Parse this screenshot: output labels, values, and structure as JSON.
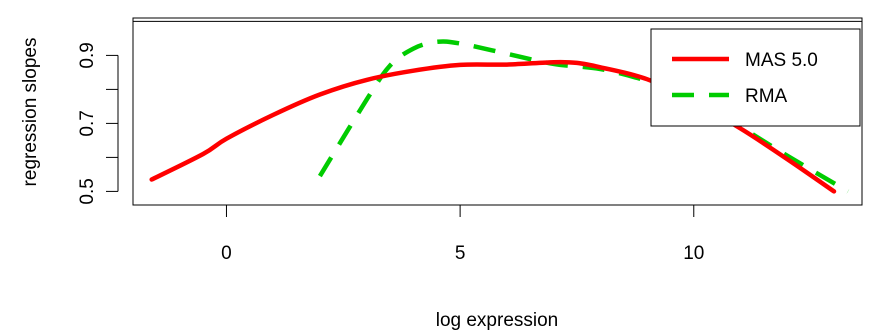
{
  "chart_data": {
    "type": "line",
    "title": "",
    "xlabel": "log expression",
    "ylabel": "regression slopes",
    "xlim": [
      -2,
      13.6
    ],
    "ylim": [
      0.46,
      1.01
    ],
    "x_ticks": [
      {
        "value": 0,
        "label": "0"
      },
      {
        "value": 5,
        "label": "5"
      },
      {
        "value": 10,
        "label": "10"
      }
    ],
    "y_ticks": [
      {
        "value": 0.5,
        "label": "0.5"
      },
      {
        "value": 0.6,
        "label": ""
      },
      {
        "value": 0.7,
        "label": "0.7"
      },
      {
        "value": 0.8,
        "label": ""
      },
      {
        "value": 0.9,
        "label": "0.9"
      }
    ],
    "reference_lines": [
      1.0
    ],
    "legend_position": "top-right",
    "series": [
      {
        "name": "MAS 5.0",
        "color": "#FF0000",
        "dash": "solid",
        "points": [
          [
            -1.6,
            0.535
          ],
          [
            -0.5,
            0.61
          ],
          [
            0,
            0.655
          ],
          [
            1,
            0.725
          ],
          [
            2,
            0.785
          ],
          [
            3,
            0.828
          ],
          [
            4,
            0.855
          ],
          [
            5,
            0.872
          ],
          [
            6,
            0.873
          ],
          [
            7,
            0.88
          ],
          [
            7.5,
            0.878
          ],
          [
            8,
            0.865
          ],
          [
            9,
            0.83
          ],
          [
            10,
            0.765
          ],
          [
            11,
            0.685
          ],
          [
            12,
            0.595
          ],
          [
            13,
            0.5
          ]
        ]
      },
      {
        "name": "RMA",
        "color": "#00CC00",
        "dash": "dashed",
        "points": [
          [
            2,
            0.545
          ],
          [
            3,
            0.77
          ],
          [
            3.5,
            0.87
          ],
          [
            4,
            0.92
          ],
          [
            4.5,
            0.94
          ],
          [
            5,
            0.935
          ],
          [
            6,
            0.905
          ],
          [
            7,
            0.875
          ],
          [
            8,
            0.86
          ],
          [
            9,
            0.825
          ],
          [
            10,
            0.775
          ],
          [
            11,
            0.69
          ],
          [
            12,
            0.605
          ],
          [
            13.3,
            0.5
          ]
        ]
      }
    ]
  }
}
